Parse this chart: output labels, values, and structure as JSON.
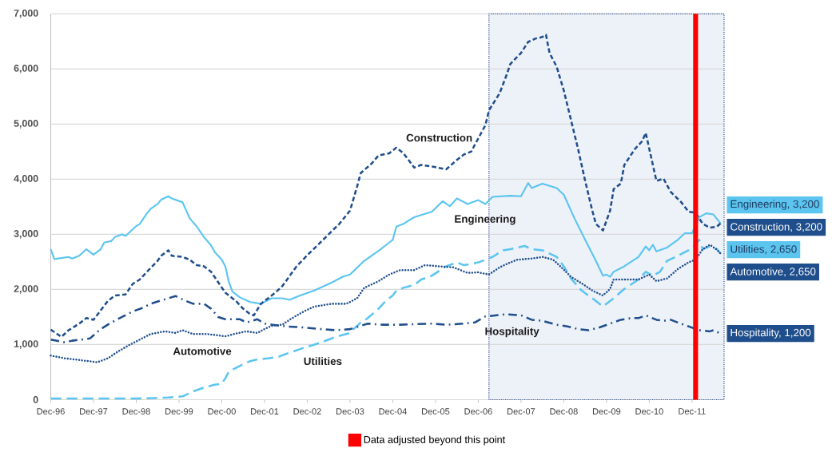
{
  "chart_data": {
    "type": "line",
    "xlim": [
      "1996-12",
      "2012-09"
    ],
    "ylim": [
      0,
      7000
    ],
    "xticks": [
      {
        "value": "1996-12",
        "label": "Dec-96"
      },
      {
        "value": "1997-12",
        "label": "Dec-97"
      },
      {
        "value": "1998-12",
        "label": "Dec-98"
      },
      {
        "value": "1999-12",
        "label": "Dec-99"
      },
      {
        "value": "2000-12",
        "label": "Dec-00"
      },
      {
        "value": "2001-12",
        "label": "Dec-01"
      },
      {
        "value": "2002-12",
        "label": "Dec-02"
      },
      {
        "value": "2003-12",
        "label": "Dec-03"
      },
      {
        "value": "2004-12",
        "label": "Dec-04"
      },
      {
        "value": "2005-12",
        "label": "Dec-05"
      },
      {
        "value": "2006-12",
        "label": "Dec-06"
      },
      {
        "value": "2007-12",
        "label": "Dec-07"
      },
      {
        "value": "2008-12",
        "label": "Dec-08"
      },
      {
        "value": "2009-12",
        "label": "Dec-09"
      },
      {
        "value": "2010-12",
        "label": "Dec-10"
      },
      {
        "value": "2011-12",
        "label": "Dec-11"
      }
    ],
    "yticks": [
      0,
      {
        "value": 1000,
        "label": "1,000"
      },
      {
        "value": 2000,
        "label": "2,000"
      },
      {
        "value": 3000,
        "label": "3,000"
      },
      {
        "value": 4000,
        "label": "4,000"
      },
      {
        "value": 5000,
        "label": "5,000"
      },
      {
        "value": 6000,
        "label": "6,000"
      },
      {
        "value": 7000,
        "label": "7,000"
      }
    ],
    "grid": "y",
    "legend": "bottom",
    "ref_lines": [
      {
        "axis": "x",
        "value": "2012-01",
        "label": "Data adjusted beyond this point",
        "color": "#ff0000"
      }
    ],
    "bands": [
      {
        "axis": "x",
        "from": "2007-03",
        "to": "2012-09",
        "color": "#edf1f8"
      }
    ],
    "series": [
      {
        "name": "Engineering",
        "color": "#5bc5f0",
        "line_style": "solid",
        "x": [
          "1996-12",
          "1997-01",
          "1997-03",
          "1997-05",
          "1997-06",
          "1997-08",
          "1997-10",
          "1997-12",
          "1998-02",
          "1998-03",
          "1998-05",
          "1998-06",
          "1998-08",
          "1998-09",
          "1998-11",
          "1998-12",
          "1999-01",
          "1999-03",
          "1999-04",
          "1999-06",
          "1999-07",
          "1999-09",
          "1999-10",
          "2000-01",
          "2000-03",
          "2000-05",
          "2000-07",
          "2000-09",
          "2000-10",
          "2000-12",
          "2001-01",
          "2001-02",
          "2001-03",
          "2001-05",
          "2001-08",
          "2001-11",
          "2002-02",
          "2002-05",
          "2002-07",
          "2002-10",
          "2003-02",
          "2003-07",
          "2003-10",
          "2003-12",
          "2004-04",
          "2004-08",
          "2004-11",
          "2004-12",
          "2005-01",
          "2005-03",
          "2005-06",
          "2005-11",
          "2006-02",
          "2006-04",
          "2006-06",
          "2006-09",
          "2006-12",
          "2007-02",
          "2007-04",
          "2007-09",
          "2007-12",
          "2008-02",
          "2008-03",
          "2008-06",
          "2008-10",
          "2008-12",
          "2009-03",
          "2009-06",
          "2009-09",
          "2009-11",
          "2009-12",
          "2010-01",
          "2010-02",
          "2010-05",
          "2010-09",
          "2010-11",
          "2010-12",
          "2011-01",
          "2011-02",
          "2011-05",
          "2011-08",
          "2011-10",
          "2011-12",
          "2012-02",
          "2012-04",
          "2012-06",
          "2012-08"
        ],
        "values": [
          2730,
          2550,
          2570,
          2590,
          2560,
          2610,
          2730,
          2630,
          2730,
          2850,
          2880,
          2950,
          3000,
          2970,
          3090,
          3150,
          3190,
          3380,
          3460,
          3550,
          3630,
          3690,
          3650,
          3580,
          3290,
          3140,
          2950,
          2800,
          2680,
          2540,
          2420,
          2130,
          1960,
          1860,
          1770,
          1740,
          1840,
          1840,
          1810,
          1890,
          1980,
          2130,
          2230,
          2270,
          2520,
          2700,
          2850,
          2900,
          3140,
          3190,
          3310,
          3410,
          3600,
          3510,
          3650,
          3550,
          3620,
          3550,
          3680,
          3700,
          3690,
          3930,
          3840,
          3920,
          3840,
          3720,
          3290,
          2900,
          2520,
          2250,
          2270,
          2230,
          2320,
          2420,
          2590,
          2780,
          2710,
          2810,
          2690,
          2760,
          2900,
          3020,
          3020,
          3310,
          3380,
          3360,
          3200
        ],
        "value_labels": [
          null,
          null,
          null,
          null,
          null,
          null,
          null,
          null,
          null,
          null,
          null,
          null,
          null,
          null,
          null,
          null,
          null,
          null,
          null,
          null,
          null,
          null,
          null,
          null,
          null,
          null,
          null,
          null,
          null,
          null,
          null,
          null,
          null,
          null,
          null,
          null,
          null,
          null,
          null,
          null,
          null,
          null,
          null,
          null,
          null,
          null,
          null,
          null,
          null,
          null,
          null,
          null,
          null,
          null,
          null,
          null,
          null,
          null,
          null,
          null,
          null,
          null,
          null,
          null,
          null,
          null,
          null,
          null,
          null,
          null,
          null,
          null,
          null,
          null,
          null,
          null,
          null,
          null,
          null,
          null,
          null,
          null,
          null,
          null,
          null,
          null,
          "Engineering, 3,200"
        ]
      },
      {
        "name": "Construction",
        "color": "#1f4e8c",
        "line_style": "dashed",
        "x": [
          "1996-12",
          "1997-03",
          "1997-05",
          "1997-08",
          "1997-10",
          "1997-12",
          "1998-02",
          "1998-04",
          "1998-06",
          "1998-09",
          "1998-11",
          "1999-01",
          "1999-03",
          "1999-06",
          "1999-07",
          "1999-09",
          "1999-10",
          "2000-01",
          "2000-03",
          "2000-05",
          "2000-07",
          "2000-09",
          "2000-11",
          "2001-01",
          "2001-04",
          "2001-06",
          "2001-08",
          "2001-09",
          "2001-11",
          "2002-01",
          "2002-03",
          "2002-05",
          "2002-09",
          "2002-12",
          "2003-03",
          "2003-06",
          "2003-09",
          "2003-12",
          "2004-02",
          "2004-03",
          "2004-06",
          "2004-08",
          "2004-11",
          "2005-01",
          "2005-03",
          "2005-05",
          "2005-06",
          "2005-08",
          "2005-11",
          "2006-03",
          "2006-06",
          "2006-08",
          "2006-10",
          "2006-12",
          "2007-02",
          "2007-03",
          "2007-06",
          "2007-08",
          "2007-09",
          "2007-12",
          "2008-02",
          "2008-04",
          "2008-06",
          "2008-07",
          "2008-08",
          "2008-10",
          "2008-12",
          "2009-02",
          "2009-04",
          "2009-06",
          "2009-08",
          "2009-09",
          "2009-11",
          "2010-01",
          "2010-02",
          "2010-04",
          "2010-05",
          "2010-08",
          "2010-10",
          "2010-11",
          "2011-01",
          "2011-02",
          "2011-04",
          "2011-06",
          "2011-09",
          "2011-11",
          "2012-01",
          "2012-03",
          "2012-05",
          "2012-07",
          "2012-08"
        ],
        "values": [
          1270,
          1140,
          1260,
          1380,
          1480,
          1450,
          1620,
          1790,
          1890,
          1910,
          2100,
          2180,
          2320,
          2520,
          2610,
          2710,
          2610,
          2590,
          2540,
          2440,
          2420,
          2320,
          2130,
          1940,
          1790,
          1650,
          1550,
          1530,
          1740,
          1840,
          1940,
          2060,
          2420,
          2620,
          2810,
          3000,
          3190,
          3430,
          3870,
          4110,
          4280,
          4430,
          4470,
          4570,
          4470,
          4300,
          4210,
          4260,
          4230,
          4180,
          4350,
          4450,
          4500,
          4740,
          4980,
          5250,
          5560,
          5900,
          6090,
          6290,
          6490,
          6550,
          6580,
          6620,
          6290,
          6040,
          5610,
          5080,
          4550,
          3970,
          3430,
          3190,
          3070,
          3430,
          3820,
          3920,
          4260,
          4550,
          4690,
          4840,
          4260,
          3970,
          4010,
          3770,
          3580,
          3410,
          3390,
          3190,
          3120,
          3140,
          3200
        ],
        "value_labels": [
          null,
          null,
          null,
          null,
          null,
          null,
          null,
          null,
          null,
          null,
          null,
          null,
          null,
          null,
          null,
          null,
          null,
          null,
          null,
          null,
          null,
          null,
          null,
          null,
          null,
          null,
          null,
          null,
          null,
          null,
          null,
          null,
          null,
          null,
          null,
          null,
          null,
          null,
          null,
          null,
          null,
          null,
          null,
          null,
          null,
          null,
          null,
          null,
          null,
          null,
          null,
          null,
          null,
          null,
          null,
          null,
          null,
          null,
          null,
          null,
          null,
          null,
          null,
          null,
          null,
          null,
          null,
          null,
          null,
          null,
          null,
          null,
          null,
          null,
          null,
          null,
          null,
          null,
          null,
          null,
          null,
          null,
          null,
          null,
          null,
          null,
          null,
          null,
          null,
          null,
          "Construction, 3,200"
        ]
      },
      {
        "name": "Utilities",
        "color": "#5bc5f0",
        "line_style": "long dashed",
        "x": [
          "1996-12",
          "1997-12",
          "1998-12",
          "1999-09",
          "2000-01",
          "2000-04",
          "2000-07",
          "2000-10",
          "2000-12",
          "2001-01",
          "2001-02",
          "2001-05",
          "2001-08",
          "2001-10",
          "2002-01",
          "2002-04",
          "2002-06",
          "2002-11",
          "2003-04",
          "2003-08",
          "2003-12",
          "2004-01",
          "2004-03",
          "2004-05",
          "2004-08",
          "2004-10",
          "2004-12",
          "2005-01",
          "2005-03",
          "2005-06",
          "2005-08",
          "2005-11",
          "2006-03",
          "2006-06",
          "2006-08",
          "2006-12",
          "2007-02",
          "2007-04",
          "2007-07",
          "2007-09",
          "2008-01",
          "2008-03",
          "2008-06",
          "2008-10",
          "2008-12",
          "2009-02",
          "2009-05",
          "2009-08",
          "2009-11",
          "2010-02",
          "2010-05",
          "2010-09",
          "2010-11",
          "2011-01",
          "2011-03",
          "2011-05",
          "2011-08",
          "2011-11",
          "2012-01",
          "2012-02",
          "2012-03",
          "2012-05",
          "2012-07",
          "2012-08"
        ],
        "values": [
          20,
          20,
          20,
          40,
          60,
          150,
          220,
          270,
          290,
          390,
          510,
          610,
          700,
          730,
          750,
          780,
          830,
          940,
          1040,
          1140,
          1210,
          1280,
          1400,
          1480,
          1650,
          1790,
          1890,
          1980,
          2030,
          2080,
          2180,
          2250,
          2420,
          2490,
          2440,
          2490,
          2540,
          2590,
          2710,
          2730,
          2790,
          2730,
          2710,
          2590,
          2420,
          2200,
          1980,
          1840,
          1690,
          1840,
          2010,
          2180,
          2320,
          2250,
          2320,
          2520,
          2610,
          2710,
          2810,
          2900,
          2730,
          2780,
          2730,
          2650
        ],
        "value_labels": [
          null,
          null,
          null,
          null,
          null,
          null,
          null,
          null,
          null,
          null,
          null,
          null,
          null,
          null,
          null,
          null,
          null,
          null,
          null,
          null,
          null,
          null,
          null,
          null,
          null,
          null,
          null,
          null,
          null,
          null,
          null,
          null,
          null,
          null,
          null,
          null,
          null,
          null,
          null,
          null,
          null,
          null,
          null,
          null,
          null,
          null,
          null,
          null,
          null,
          null,
          null,
          null,
          null,
          null,
          null,
          null,
          null,
          null,
          null,
          null,
          null,
          null,
          null,
          "Utilities, 2,650"
        ]
      },
      {
        "name": "Automotive",
        "color": "#1f4e8c",
        "line_style": "dotted",
        "x": [
          "1996-12",
          "1997-04",
          "1997-08",
          "1998-01",
          "1998-04",
          "1998-07",
          "1998-10",
          "1999-01",
          "1999-04",
          "1999-08",
          "1999-11",
          "2000-01",
          "2000-04",
          "2000-08",
          "2001-01",
          "2001-04",
          "2001-07",
          "2001-10",
          "2001-12",
          "2002-02",
          "2002-05",
          "2002-07",
          "2002-11",
          "2003-02",
          "2003-07",
          "2003-11",
          "2004-02",
          "2004-04",
          "2004-08",
          "2004-11",
          "2005-02",
          "2005-06",
          "2005-09",
          "2006-01",
          "2006-05",
          "2006-09",
          "2006-12",
          "2007-03",
          "2007-06",
          "2007-09",
          "2007-11",
          "2008-03",
          "2008-06",
          "2008-09",
          "2008-11",
          "2009-02",
          "2009-05",
          "2009-08",
          "2009-11",
          "2010-01",
          "2010-02",
          "2010-06",
          "2010-09",
          "2010-12",
          "2011-02",
          "2011-05",
          "2011-08",
          "2011-11",
          "2012-01",
          "2012-03",
          "2012-05",
          "2012-07",
          "2012-08"
        ],
        "values": [
          800,
          750,
          720,
          680,
          750,
          880,
          990,
          1090,
          1190,
          1240,
          1210,
          1260,
          1190,
          1190,
          1150,
          1200,
          1240,
          1210,
          1280,
          1340,
          1360,
          1450,
          1600,
          1690,
          1740,
          1740,
          1840,
          2030,
          2150,
          2270,
          2350,
          2350,
          2440,
          2420,
          2400,
          2300,
          2310,
          2270,
          2400,
          2490,
          2540,
          2560,
          2590,
          2540,
          2420,
          2230,
          2110,
          1980,
          1890,
          2010,
          2180,
          2180,
          2180,
          2270,
          2150,
          2200,
          2370,
          2490,
          2540,
          2730,
          2810,
          2720,
          2650
        ],
        "value_labels": [
          null,
          null,
          null,
          null,
          null,
          null,
          null,
          null,
          null,
          null,
          null,
          null,
          null,
          null,
          null,
          null,
          null,
          null,
          null,
          null,
          null,
          null,
          null,
          null,
          null,
          null,
          null,
          null,
          null,
          null,
          null,
          null,
          null,
          null,
          null,
          null,
          null,
          null,
          null,
          null,
          null,
          null,
          null,
          null,
          null,
          null,
          null,
          null,
          null,
          null,
          null,
          null,
          null,
          null,
          null,
          null,
          null,
          null,
          null,
          null,
          null,
          null,
          "Automotive, 2,650"
        ]
      },
      {
        "name": "Hospitality",
        "color": "#1f4e8c",
        "line_style": "dash dot",
        "x": [
          "1996-12",
          "1997-04",
          "1997-06",
          "1997-11",
          "1998-02",
          "1998-05",
          "1998-08",
          "1998-11",
          "1999-02",
          "1999-04",
          "1999-08",
          "1999-11",
          "2000-02",
          "2000-04",
          "2000-07",
          "2000-09",
          "2000-11",
          "2001-01",
          "2001-05",
          "2001-07",
          "2001-10",
          "2001-12",
          "2002-02",
          "2002-06",
          "2002-11",
          "2003-04",
          "2003-08",
          "2003-12",
          "2004-05",
          "2004-09",
          "2005-02",
          "2005-06",
          "2005-11",
          "2006-03",
          "2006-08",
          "2006-11",
          "2007-02",
          "2007-05",
          "2007-08",
          "2007-12",
          "2008-03",
          "2008-06",
          "2008-10",
          "2009-01",
          "2009-04",
          "2009-07",
          "2009-10",
          "2010-01",
          "2010-04",
          "2010-07",
          "2010-09",
          "2010-11",
          "2011-02",
          "2011-04",
          "2011-06",
          "2011-08",
          "2011-11",
          "2012-02",
          "2012-05",
          "2012-06",
          "2012-08"
        ],
        "values": [
          1090,
          1040,
          1070,
          1110,
          1280,
          1400,
          1500,
          1600,
          1670,
          1740,
          1820,
          1880,
          1790,
          1740,
          1740,
          1650,
          1500,
          1460,
          1460,
          1400,
          1460,
          1380,
          1360,
          1330,
          1310,
          1280,
          1260,
          1280,
          1380,
          1360,
          1360,
          1370,
          1380,
          1360,
          1380,
          1400,
          1510,
          1530,
          1550,
          1530,
          1450,
          1430,
          1360,
          1330,
          1280,
          1260,
          1310,
          1380,
          1450,
          1480,
          1480,
          1530,
          1450,
          1430,
          1450,
          1400,
          1330,
          1260,
          1240,
          1260,
          1200
        ],
        "value_labels": [
          null,
          null,
          null,
          null,
          null,
          null,
          null,
          null,
          null,
          null,
          null,
          null,
          null,
          null,
          null,
          null,
          null,
          null,
          null,
          null,
          null,
          null,
          null,
          null,
          null,
          null,
          null,
          null,
          null,
          null,
          null,
          null,
          null,
          null,
          null,
          null,
          null,
          null,
          null,
          null,
          null,
          null,
          null,
          null,
          null,
          null,
          null,
          null,
          null,
          null,
          null,
          null,
          null,
          null,
          null,
          null,
          null,
          null,
          null,
          null,
          "Hospitality, 1,200"
        ]
      }
    ]
  }
}
